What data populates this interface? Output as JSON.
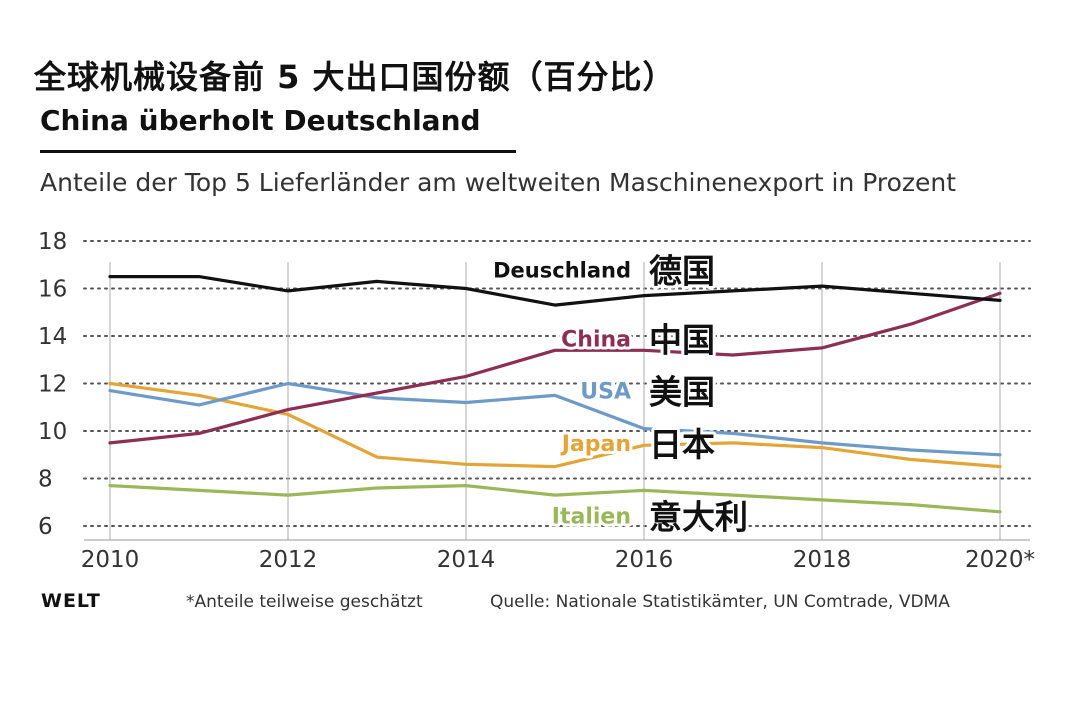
{
  "header": {
    "title_cn": "全球机械设备前 5 大出口国份额（百分比）",
    "title_de": "China überholt Deutschland",
    "subtitle": "Anteile der Top 5 Lieferländer am weltweiten Maschinenexport in Prozent"
  },
  "footer": {
    "logo": "WELT",
    "note": "*Anteile teilweise geschätzt",
    "source": "Quelle: Nationale Statistikämter, UN Comtrade, VDMA"
  },
  "chart_data": {
    "type": "line",
    "title": "China überholt Deutschland",
    "subtitle": "Anteile der Top 5 Lieferländer am weltweiten Maschinenexport in Prozent",
    "x": [
      2010,
      2011,
      2012,
      2013,
      2014,
      2015,
      2016,
      2017,
      2018,
      2019,
      2020
    ],
    "x_ticks": [
      "2010",
      "2012",
      "2014",
      "2016",
      "2018",
      "2020*"
    ],
    "x_tick_values": [
      2010,
      2012,
      2014,
      2016,
      2018,
      2020
    ],
    "y_ticks": [
      "6",
      "8",
      "10",
      "12",
      "14",
      "16",
      "18"
    ],
    "y_tick_values": [
      6,
      8,
      10,
      12,
      14,
      16,
      18
    ],
    "ylim": [
      6,
      18
    ],
    "xlim": [
      2010,
      2020
    ],
    "grid": true,
    "series": [
      {
        "name": "Deuschland",
        "label_cn": "德国",
        "color": "#111111",
        "values": [
          16.5,
          16.5,
          15.9,
          16.3,
          16.0,
          15.3,
          15.7,
          15.9,
          16.1,
          15.8,
          15.5
        ]
      },
      {
        "name": "China",
        "label_cn": "中国",
        "color": "#8c2f52",
        "values": [
          9.5,
          9.9,
          10.9,
          11.6,
          12.3,
          13.4,
          13.4,
          13.2,
          13.5,
          14.5,
          15.8
        ]
      },
      {
        "name": "USA",
        "label_cn": "美国",
        "color": "#6e9ac8",
        "values": [
          11.7,
          11.1,
          12.0,
          11.4,
          11.2,
          11.5,
          10.1,
          9.9,
          9.5,
          9.2,
          9.0
        ]
      },
      {
        "name": "Japan",
        "label_cn": "日本",
        "color": "#e3a538",
        "values": [
          12.0,
          11.5,
          10.7,
          8.9,
          8.6,
          8.5,
          9.4,
          9.5,
          9.3,
          8.8,
          8.5
        ]
      },
      {
        "name": "Italien",
        "label_cn": "意大利",
        "color": "#9ab85a",
        "values": [
          7.7,
          7.5,
          7.3,
          7.6,
          7.7,
          7.3,
          7.5,
          7.3,
          7.1,
          6.9,
          6.6
        ]
      }
    ]
  }
}
